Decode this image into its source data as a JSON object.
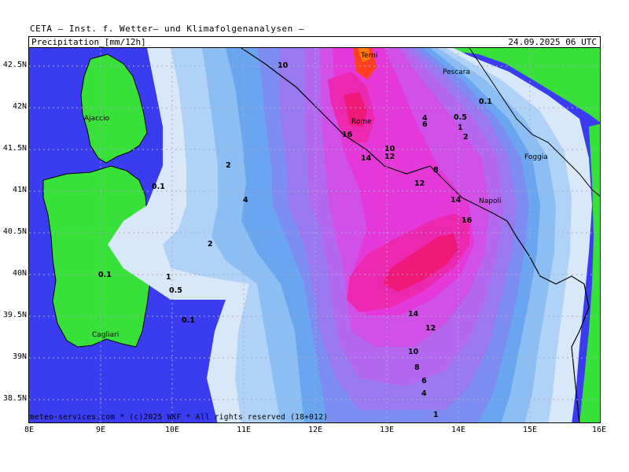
{
  "header": {
    "institute": "CETA — Inst. f. Wetter— und Klimafolgenanalysen —",
    "parameter": "Precipitation_[mm/12h]",
    "datetime": "24.09.2025  06  UTC"
  },
  "footer": "meteo-services.com * (c)2025 WKF * All rights reserved (18+012)",
  "axes": {
    "lat_labels": [
      "42.5N",
      "42N",
      "41.5N",
      "41N",
      "40.5N",
      "40N",
      "39.5N",
      "39N",
      "38.5N"
    ],
    "lon_labels": [
      "8E",
      "9E",
      "10E",
      "11E",
      "12E",
      "13E",
      "14E",
      "15E",
      "16E"
    ]
  },
  "cities": [
    "Terni",
    "Pescara",
    "Ajaccio",
    "Rome",
    "Foggia",
    "Napoli",
    "Cagliari"
  ],
  "contour_labels": [
    "10",
    "16",
    "14",
    "10",
    "12",
    "4",
    "6",
    "0.5",
    "1",
    "2",
    "0.1",
    "8",
    "12",
    "14",
    "16",
    "2",
    "4",
    "0.1",
    "2",
    "1",
    "0.5",
    "0.1",
    "0.1",
    "14",
    "12",
    "10",
    "8",
    "6",
    "4",
    "1"
  ],
  "legend_levels": [
    "0.1",
    "0.5",
    "1",
    "2",
    "4",
    "6",
    "8",
    "10",
    "12",
    "14",
    "16"
  ],
  "colors": {
    "sea": "#3a3cf0",
    "land_dry": "#38e03a",
    "p0_1": "#d8e8f8",
    "p0_5": "#b0d2f6",
    "p1": "#8cbef4",
    "p2": "#6aa6f0",
    "p4": "#7c8cf0",
    "p6": "#9a78f0",
    "p8": "#b468f0",
    "p10": "#d050e8",
    "p12": "#e438d8",
    "p14": "#ec28b0",
    "p16": "#f01878",
    "p20": "#ff4020",
    "p25": "#ff7a10"
  }
}
